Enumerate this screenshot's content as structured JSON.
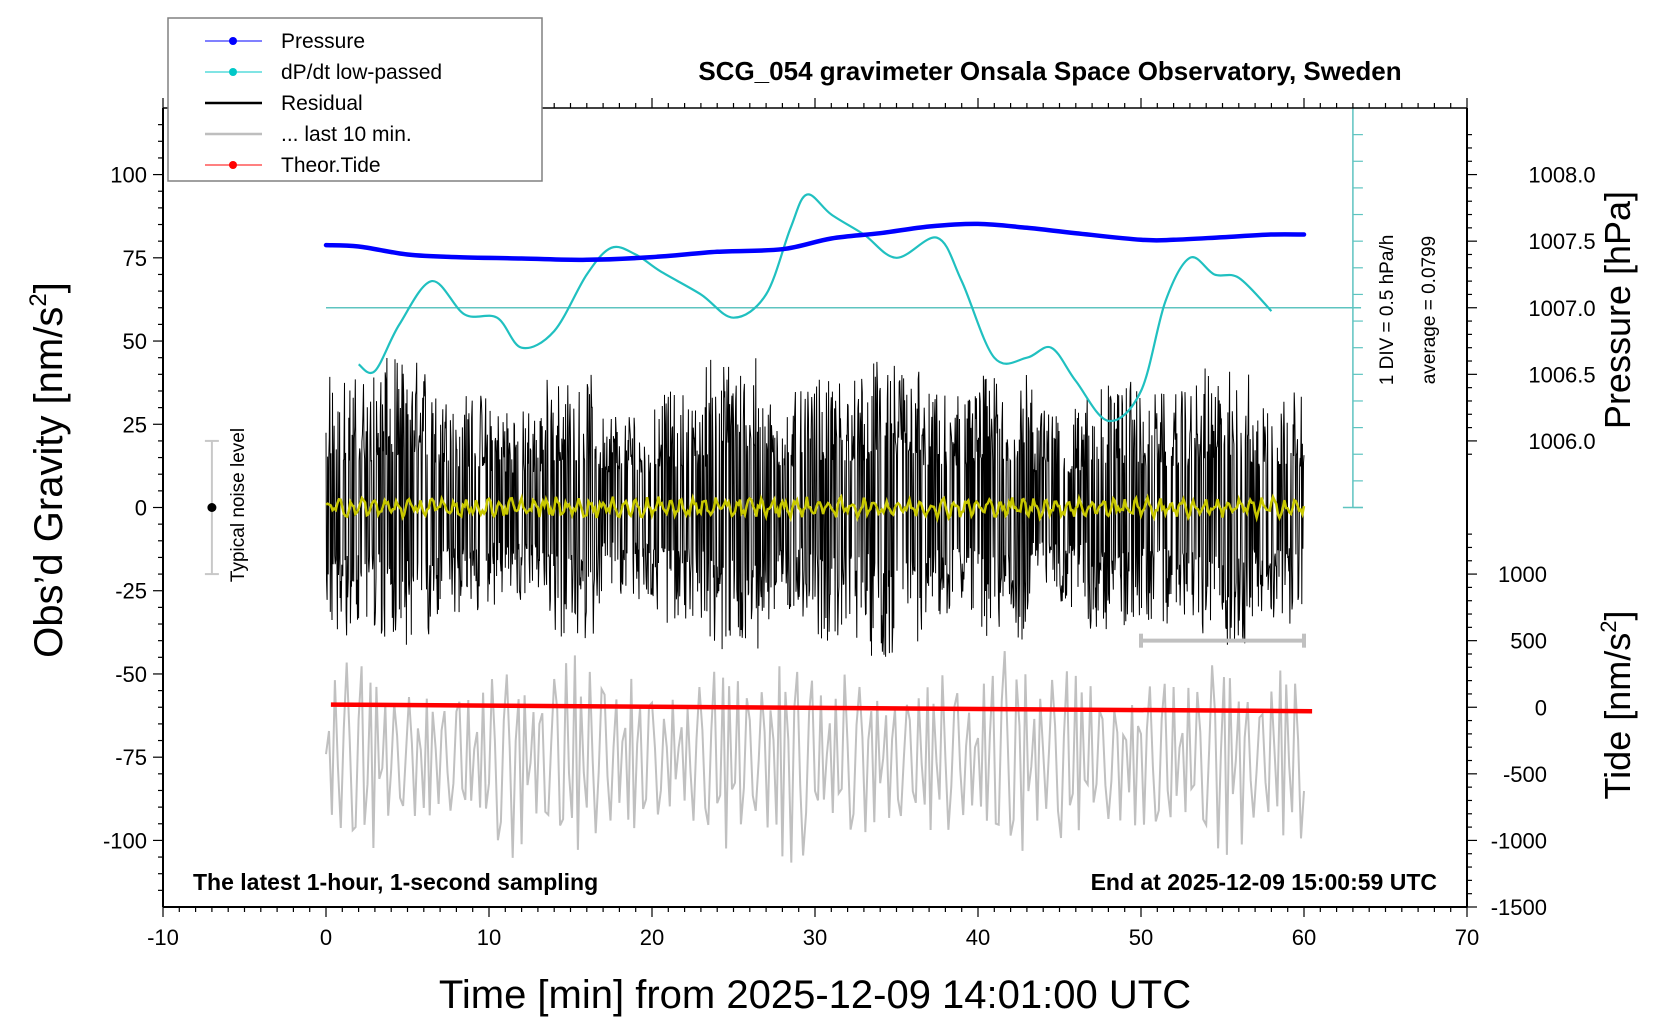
{
  "chart_data": {
    "type": "line",
    "title": "SCG_054 gravimeter Onsala Space Observatory, Sweden",
    "xlabel": "Time [min] from 2025-12-09 14:01:00 UTC",
    "ylabel_left": "Obs’d Gravity [nm/s",
    "ylabel_left_sup": "2",
    "ylabel_left_close": "]",
    "ylabel_right_pressure": "Pressure [hPa]",
    "ylabel_right_tide": "Tide [nm/s",
    "ylabel_right_tide_sup": "2",
    "ylabel_right_tide_close": "]",
    "xlim": [
      -10,
      70
    ],
    "ylim": [
      -120,
      120
    ],
    "x_ticks": [
      "-10",
      "0",
      "10",
      "20",
      "30",
      "40",
      "50",
      "60",
      "70"
    ],
    "x_tick_values": [
      -10,
      0,
      10,
      20,
      30,
      40,
      50,
      60,
      70
    ],
    "y_ticks": [
      "100",
      "75",
      "50",
      "25",
      "0",
      "-25",
      "-50",
      "-75",
      "-100"
    ],
    "y_tick_values": [
      100,
      75,
      50,
      25,
      0,
      -25,
      -50,
      -75,
      -100
    ],
    "pressure_axis": {
      "ticks": [
        "1008.0",
        "1007.5",
        "1007.0",
        "1006.5",
        "1006.0"
      ],
      "tick_values": [
        1008.0,
        1007.5,
        1007.0,
        1006.5,
        1006.0
      ],
      "gravity_equiv": [
        100,
        80,
        60,
        40,
        20
      ]
    },
    "tide_axis": {
      "ticks": [
        "1000",
        "500",
        "0",
        "-500",
        "-1000",
        "-1500"
      ],
      "tick_values": [
        1000,
        500,
        0,
        -500,
        -1000,
        -1500
      ],
      "range": [
        -1500,
        1000
      ],
      "gravity_equiv_range": [
        -120,
        -20
      ]
    },
    "dpdt_scale_label": "1 DIV = 0.5 hPa/h",
    "dpdt_average_label": "average = 0.0799",
    "dpdt_zero_line_gravity": 60,
    "noise_marker_label": "Typical noise level",
    "noise_marker": {
      "x": -7,
      "center": 0,
      "half_range": 20
    },
    "footer_left": "The latest 1-hour, 1-second sampling",
    "footer_right": "End at 2025-12-09 15:00:59 UTC",
    "last10_bracket": {
      "x_start": 50,
      "x_end": 60,
      "gravity": -40
    },
    "legend": [
      {
        "label": "Pressure",
        "color": "#0000ff",
        "marker": "dot"
      },
      {
        "label": "dP/dt low-passed",
        "color": "#00c8c8",
        "marker": "dot"
      },
      {
        "label": "Residual",
        "color": "#000000",
        "marker": "line"
      },
      {
        "label": "... last 10 min.",
        "color": "#bebebe",
        "marker": "line"
      },
      {
        "label": "Theor.Tide",
        "color": "#ff0000",
        "marker": "dot"
      }
    ],
    "series": [
      {
        "name": "Pressure",
        "axis": "pressure_hPa",
        "color": "#0000ff",
        "x": [
          0,
          2,
          5,
          8,
          12,
          16,
          20,
          24,
          28,
          31,
          34,
          37,
          40,
          43,
          46,
          50,
          52,
          55,
          58,
          60
        ],
        "values": [
          1007.47,
          1007.46,
          1007.4,
          1007.38,
          1007.37,
          1007.36,
          1007.38,
          1007.42,
          1007.44,
          1007.52,
          1007.56,
          1007.61,
          1007.63,
          1007.6,
          1007.56,
          1007.51,
          1007.51,
          1007.53,
          1007.55,
          1007.55
        ]
      },
      {
        "name": "dP/dt low-passed",
        "axis": "gravity_equivalent",
        "color": "#20c0c0",
        "x": [
          2,
          3,
          4.5,
          6.5,
          8.5,
          10.5,
          12,
          14,
          16,
          17.5,
          19,
          20.5,
          23,
          25,
          27,
          28.5,
          29.5,
          31,
          33,
          35,
          37.5,
          39,
          41,
          43,
          44.5,
          46,
          48,
          50,
          51.5,
          53,
          54.5,
          56,
          58
        ],
        "values": [
          43,
          41,
          55,
          68,
          58,
          57,
          48,
          53,
          70,
          78,
          76,
          71,
          64,
          57,
          64,
          84,
          94,
          88,
          82,
          75,
          81,
          68,
          45,
          45,
          48,
          38,
          26,
          35,
          62,
          75,
          70,
          69,
          59
        ]
      },
      {
        "name": "Residual",
        "axis": "gravity",
        "color": "#000000",
        "x_range": [
          0,
          60
        ],
        "amplitude_envelope": [
          40,
          45,
          35,
          30,
          40,
          30,
          35,
          45,
          35,
          40,
          45,
          35,
          40,
          30,
          38,
          35,
          42,
          35
        ],
        "low_passed_color": "#c8c800",
        "low_passed_amplitude": 3
      },
      {
        "name": "... last 10 min.",
        "axis": "gravity_expanded",
        "color": "#c0c0c0",
        "x_range": [
          0,
          60
        ],
        "center": -75,
        "amplitude": 30
      },
      {
        "name": "Theor.Tide",
        "axis": "tide_nm_s2",
        "color": "#ff0000",
        "x": [
          0.3,
          60.5
        ],
        "values": [
          20,
          -30
        ]
      }
    ]
  }
}
